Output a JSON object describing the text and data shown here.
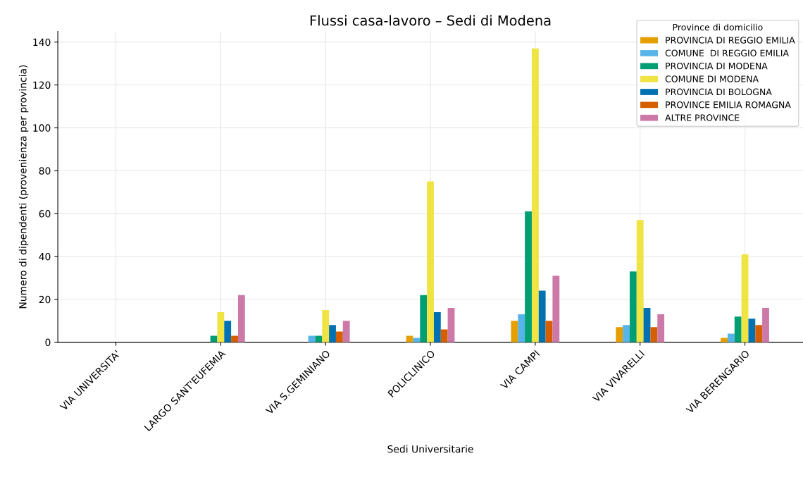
{
  "chart_data": {
    "type": "bar",
    "title": "Flussi casa-lavoro – Sedi di Modena",
    "xlabel": "Sedi Universitarie",
    "ylabel": "Numero di dipendenti (provenienza per provincia)",
    "legend_title": "Province di domicilio",
    "categories": [
      "VIA UNIVERSITA'",
      "LARGO SANT'EUFEMIA",
      "VIA S.GEMINIANO",
      "POLICLINICO",
      "VIA CAMPI",
      "VIA VIVARELLI",
      "VIA BERENGARIO"
    ],
    "series": [
      {
        "name": "PROVINCIA DI REGGIO EMILIA",
        "color": "#e69f00",
        "values": [
          0,
          0,
          0,
          3,
          10,
          7,
          2
        ]
      },
      {
        "name": "COMUNE  DI REGGIO EMILIA",
        "color": "#56b4e9",
        "values": [
          0,
          0,
          3,
          2,
          13,
          8,
          4
        ]
      },
      {
        "name": "PROVINCIA DI MODENA",
        "color": "#009e73",
        "values": [
          0,
          3,
          3,
          22,
          61,
          33,
          12
        ]
      },
      {
        "name": "COMUNE DI MODENA",
        "color": "#f0e442",
        "values": [
          0,
          14,
          15,
          75,
          137,
          57,
          41
        ]
      },
      {
        "name": "PROVINCIA DI BOLOGNA",
        "color": "#0072b2",
        "values": [
          0,
          10,
          8,
          14,
          24,
          16,
          11
        ]
      },
      {
        "name": "PROVINCE EMILIA ROMAGNA",
        "color": "#d55e00",
        "values": [
          0,
          3,
          5,
          6,
          10,
          7,
          8
        ]
      },
      {
        "name": "ALTRE PROVINCE",
        "color": "#cc79a7",
        "values": [
          0,
          22,
          10,
          16,
          31,
          13,
          16
        ]
      }
    ],
    "ylim": [
      0,
      145
    ],
    "yticks": [
      0,
      20,
      40,
      60,
      80,
      100,
      120,
      140
    ],
    "grid": true,
    "legend": "top right"
  }
}
